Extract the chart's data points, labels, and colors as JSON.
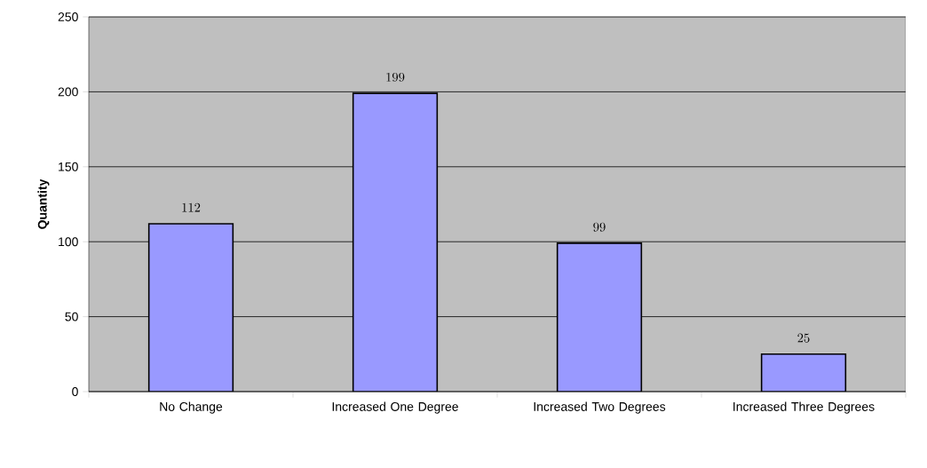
{
  "chart_data": {
    "type": "bar",
    "ylabel": "Quantity",
    "categories": [
      "No Change",
      "Increased One Degree",
      "Increased Two Degrees",
      "Increased Three Degrees"
    ],
    "values": [
      112,
      199,
      99,
      25
    ],
    "color": "#9999ff",
    "ylim": [
      0,
      250
    ],
    "yticks": [
      0,
      50,
      100,
      150,
      200,
      250
    ],
    "grid": "y",
    "data_labels": true
  }
}
